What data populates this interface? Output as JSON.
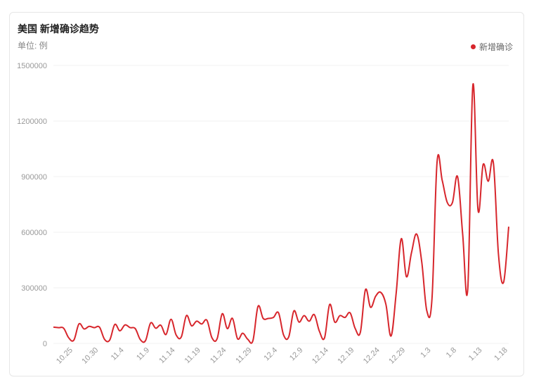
{
  "chart_data": {
    "type": "line",
    "title": "美国 新增确诊趋势",
    "unit_label": "单位: 例",
    "legend_position": "top-right",
    "grid": true,
    "ylim": [
      0,
      1500000
    ],
    "yticks": [
      0,
      300000,
      600000,
      900000,
      1200000,
      1500000
    ],
    "ytick_labels": [
      "0",
      "300000",
      "600000",
      "900000",
      "1200000",
      "1500000"
    ],
    "xticks": [
      "10.25",
      "10.30",
      "11.4",
      "11.9",
      "11.14",
      "11.19",
      "11.24",
      "11.29",
      "12.4",
      "12.9",
      "12.14",
      "12.19",
      "12.24",
      "12.29",
      "1.3",
      "1.8",
      "1.13",
      "1.18"
    ],
    "series": [
      {
        "name": "新增确诊",
        "color": "#d7262c",
        "values": [
          88000,
          85000,
          82000,
          30000,
          18000,
          105000,
          78000,
          92000,
          85000,
          88000,
          22000,
          18000,
          102000,
          68000,
          100000,
          85000,
          80000,
          20000,
          15000,
          110000,
          82000,
          98000,
          48000,
          130000,
          45000,
          35000,
          150000,
          95000,
          120000,
          105000,
          125000,
          30000,
          25000,
          160000,
          80000,
          135000,
          25000,
          55000,
          22000,
          15000,
          200000,
          135000,
          135000,
          140000,
          165000,
          45000,
          35000,
          175000,
          115000,
          150000,
          120000,
          155000,
          65000,
          30000,
          210000,
          115000,
          150000,
          140000,
          165000,
          80000,
          60000,
          290000,
          195000,
          255000,
          275000,
          210000,
          40000,
          270000,
          565000,
          360000,
          490000,
          590000,
          440000,
          175000,
          240000,
          980000,
          880000,
          760000,
          760000,
          900000,
          590000,
          295000,
          1395000,
          720000,
          965000,
          875000,
          975000,
          480000,
          330000,
          630000
        ]
      }
    ]
  }
}
